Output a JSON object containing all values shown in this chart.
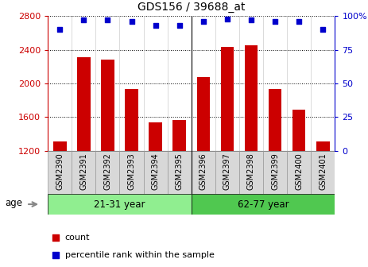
{
  "title": "GDS156 / 39688_at",
  "samples": [
    "GSM2390",
    "GSM2391",
    "GSM2392",
    "GSM2393",
    "GSM2394",
    "GSM2395",
    "GSM2396",
    "GSM2397",
    "GSM2398",
    "GSM2399",
    "GSM2400",
    "GSM2401"
  ],
  "counts": [
    1310,
    2310,
    2280,
    1930,
    1540,
    1570,
    2080,
    2430,
    2450,
    1930,
    1690,
    1310
  ],
  "percentiles": [
    90,
    97,
    97,
    96,
    93,
    93,
    96,
    98,
    97,
    96,
    96,
    90
  ],
  "ylim_left": [
    1200,
    2800
  ],
  "ylim_right": [
    0,
    100
  ],
  "yticks_left": [
    1200,
    1600,
    2000,
    2400,
    2800
  ],
  "yticks_right": [
    0,
    25,
    50,
    75,
    100
  ],
  "bar_color": "#cc0000",
  "scatter_color": "#0000cc",
  "group1_label": "21-31 year",
  "group2_label": "62-77 year",
  "group1_color": "#90ee90",
  "group2_color": "#50c850",
  "age_label": "age",
  "legend_count": "count",
  "legend_percentile": "percentile rank within the sample",
  "background_color": "#ffffff",
  "xtick_box_color": "#d8d8d8"
}
